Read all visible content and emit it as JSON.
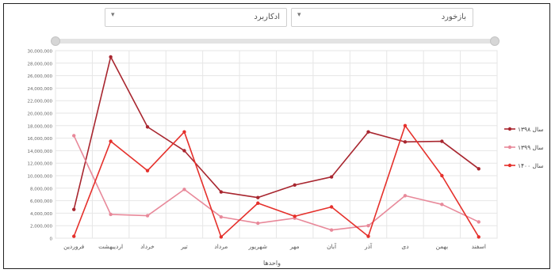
{
  "filters": {
    "left": {
      "value": "ادکاربرد"
    },
    "right": {
      "value": "بازخورد"
    }
  },
  "chart_data": {
    "type": "line",
    "categories": [
      "فروردین",
      "اردیبهشت",
      "خرداد",
      "تیر",
      "مرداد",
      "شهریور",
      "مهر",
      "آبان",
      "آذر",
      "دی",
      "بهمن",
      "اسفند"
    ],
    "xlabel": "واحد‌ها",
    "ylim": [
      0,
      30000000
    ],
    "yticks": [
      0,
      2000000,
      4000000,
      6000000,
      8000000,
      10000000,
      12000000,
      14000000,
      16000000,
      18000000,
      20000000,
      22000000,
      24000000,
      26000000,
      28000000,
      30000000
    ],
    "ytick_labels": [
      "0",
      "2,000,000",
      "4,000,000",
      "6,000,000",
      "8,000,000",
      "10,000,000",
      "12,000,000",
      "14,000,000",
      "16,000,000",
      "18,000,000",
      "20,000,000",
      "22,000,000",
      "24,000,000",
      "26,000,000",
      "28,000,000",
      "30,000,000"
    ],
    "grid": true,
    "legend_position": "right",
    "series": [
      {
        "name": "سال ۱۳۹۸",
        "color": "#a8262f",
        "values": [
          4600000,
          29000000,
          17800000,
          14000000,
          7400000,
          6500000,
          8500000,
          9800000,
          17000000,
          15400000,
          15500000,
          11100000
        ]
      },
      {
        "name": "سال ۱۳۹۹",
        "color": "#e8899a",
        "values": [
          16400000,
          3800000,
          3600000,
          7800000,
          3400000,
          2400000,
          3200000,
          1300000,
          2000000,
          6800000,
          5400000,
          2600000
        ]
      },
      {
        "name": "سال ۱۴۰۰",
        "color": "#e5302b",
        "values": [
          300000,
          15500000,
          10800000,
          17000000,
          200000,
          5600000,
          3500000,
          5000000,
          300000,
          18000000,
          10000000,
          200000
        ]
      }
    ]
  }
}
